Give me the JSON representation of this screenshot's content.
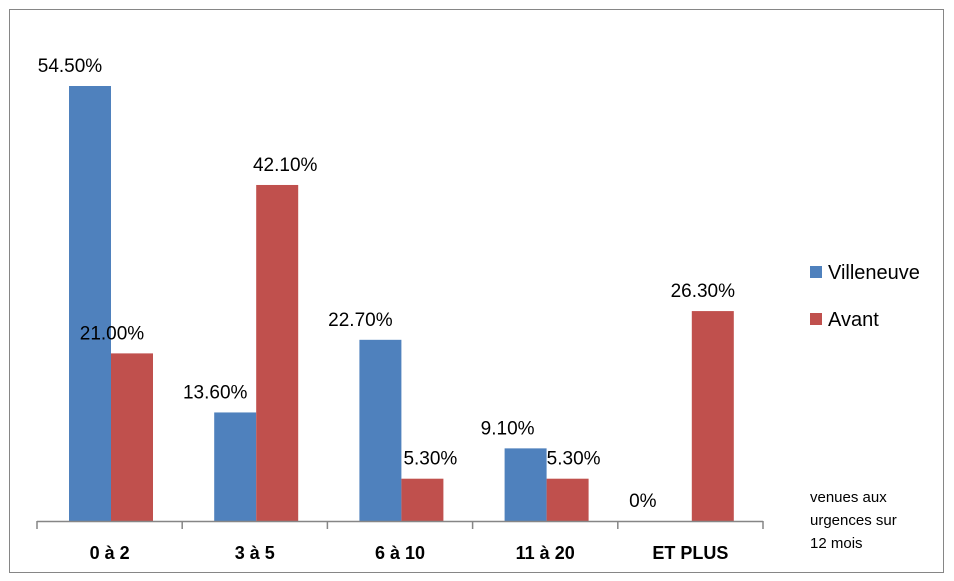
{
  "chart_data": {
    "type": "bar",
    "categories": [
      "0 à 2",
      "3 à 5",
      "6 à 10",
      "11 à 20",
      "ET PLUS"
    ],
    "series": [
      {
        "name": "Villeneuve",
        "color": "#4F81BD",
        "values": [
          54.5,
          13.6,
          22.7,
          9.1,
          0
        ],
        "labels": [
          "54.50%",
          "13.60%",
          "22.70%",
          "9.10%",
          "0%"
        ]
      },
      {
        "name": "Avant",
        "color": "#C0504D",
        "values": [
          21.0,
          42.1,
          5.3,
          5.3,
          26.3
        ],
        "labels": [
          "21.00%",
          "42.10%",
          "5.30%",
          "5.30%",
          "26.30%"
        ]
      }
    ],
    "title": "",
    "xlabel": "",
    "ylabel": "",
    "ylim": [
      0,
      60
    ],
    "grid": false,
    "legend_position": "right",
    "note_lines": [
      "venues aux",
      "urgences sur",
      "12 mois"
    ]
  }
}
